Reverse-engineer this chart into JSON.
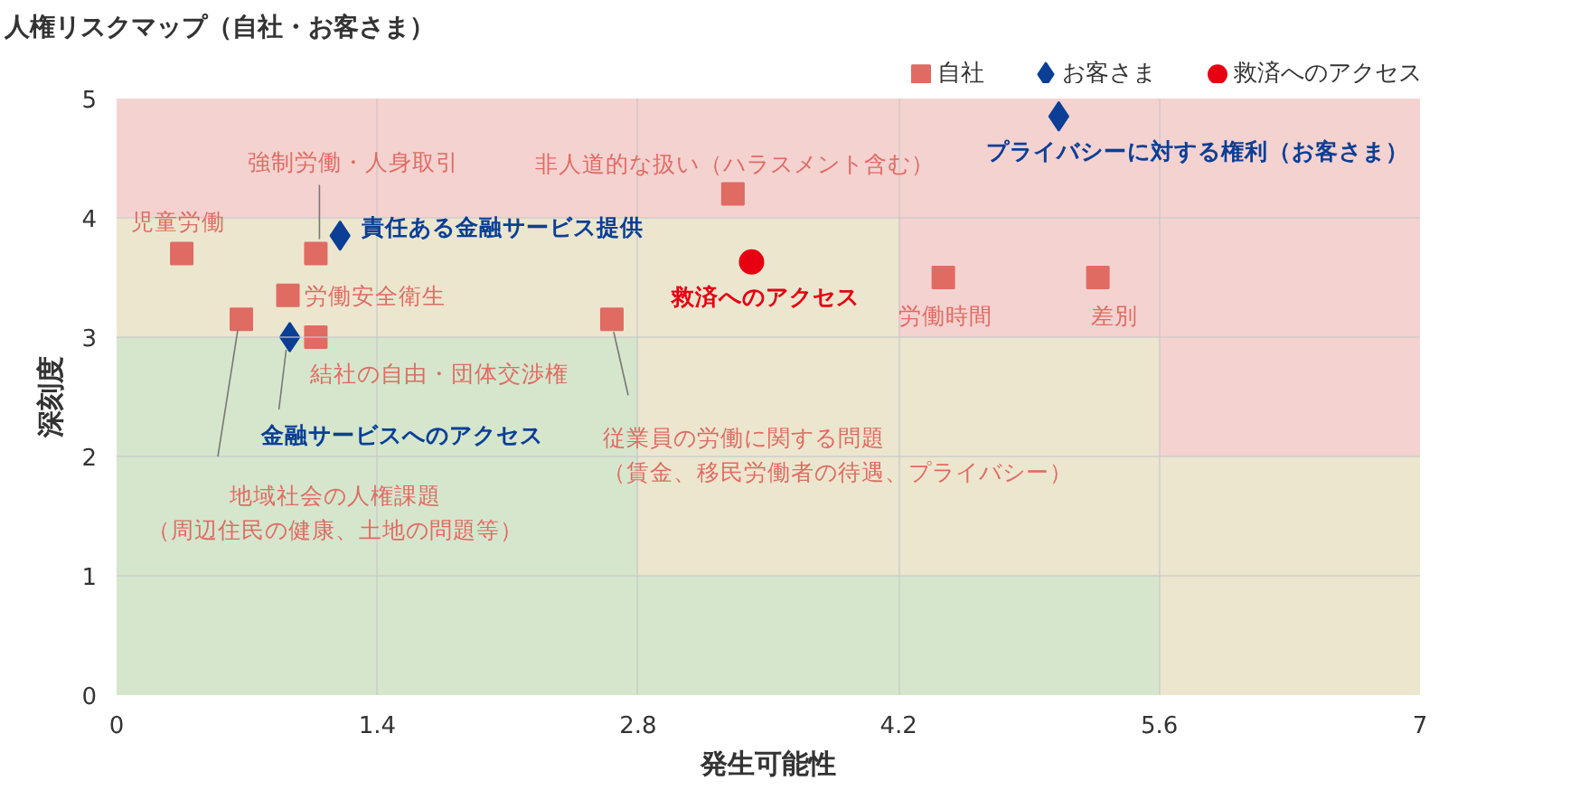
{
  "chart_data": {
    "type": "scatter",
    "title": "人権リスクマップ（自社・お客さま）",
    "xlabel": "発生可能性",
    "ylabel": "深刻度",
    "xlim": [
      0,
      7
    ],
    "ylim": [
      0,
      5
    ],
    "xticks": [
      0,
      1.4,
      2.8,
      4.2,
      5.6,
      7
    ],
    "yticks": [
      0,
      1,
      2,
      3,
      4,
      5
    ],
    "grid": true,
    "legend": "top right",
    "series": [
      {
        "type": "area",
        "color": "#f4d2d0",
        "x": [
          0,
          7
        ],
        "values": [
          5,
          5
        ]
      },
      {
        "type": "area",
        "color": "#ece6cf",
        "x": [
          0,
          4.2,
          4.2,
          5.6,
          5.6,
          7
        ],
        "values": [
          4,
          4,
          3,
          3,
          2,
          2
        ]
      },
      {
        "type": "area",
        "color": "#d5e6cc",
        "x": [
          0,
          2.8,
          2.8,
          5.6,
          5.6,
          7
        ],
        "values": [
          3,
          3,
          1,
          1,
          0,
          0
        ]
      },
      {
        "name": "自社",
        "color": "#e06b63",
        "marker": "square",
        "x": [
          0.35,
          1.07,
          0.92,
          0.67,
          1.07,
          3.31,
          2.66,
          4.44,
          5.27
        ],
        "values": [
          3.7,
          3.7,
          3.35,
          3.15,
          3.0,
          4.2,
          3.15,
          3.5,
          3.5
        ]
      },
      {
        "name": "お客さま",
        "color": "#0b3f96",
        "marker": "diamond",
        "x": [
          1.2,
          0.93,
          5.06
        ],
        "values": [
          3.85,
          3.0,
          4.85
        ]
      },
      {
        "name": "救済へのアクセス",
        "color": "#e60012",
        "marker": "circle",
        "x": [
          3.41
        ],
        "values": [
          3.63
        ]
      }
    ],
    "annotations": [
      {
        "text": "児童労働",
        "x": 0.35,
        "y": 3.7
      },
      {
        "text": "強制労働・人身取引",
        "x": 1.07,
        "y": 3.7
      },
      {
        "text": "労働安全衛生",
        "x": 0.92,
        "y": 3.35
      },
      {
        "text": "地域社会の人権課題（周辺住民の健康、土地の問題等）",
        "x": 0.67,
        "y": 3.15
      },
      {
        "text": "結社の自由・団体交渉権",
        "x": 1.07,
        "y": 3.0
      },
      {
        "text": "非人道的な扱い（ハラスメント含む）",
        "x": 3.31,
        "y": 4.2
      },
      {
        "text": "従業員の労働に関する問題（賃金、移民労働者の待遇、プライバシー）",
        "x": 2.66,
        "y": 3.15
      },
      {
        "text": "労働時間",
        "x": 4.44,
        "y": 3.5
      },
      {
        "text": "差別",
        "x": 5.27,
        "y": 3.5
      },
      {
        "text": "責任ある金融サービス提供",
        "x": 1.2,
        "y": 3.85
      },
      {
        "text": "金融サービスへのアクセス",
        "x": 0.93,
        "y": 3.0
      },
      {
        "text": "プライバシーに対する権利（お客さま）",
        "x": 5.06,
        "y": 4.85
      },
      {
        "text": "救済へのアクセス",
        "x": 3.41,
        "y": 3.63
      }
    ]
  }
}
